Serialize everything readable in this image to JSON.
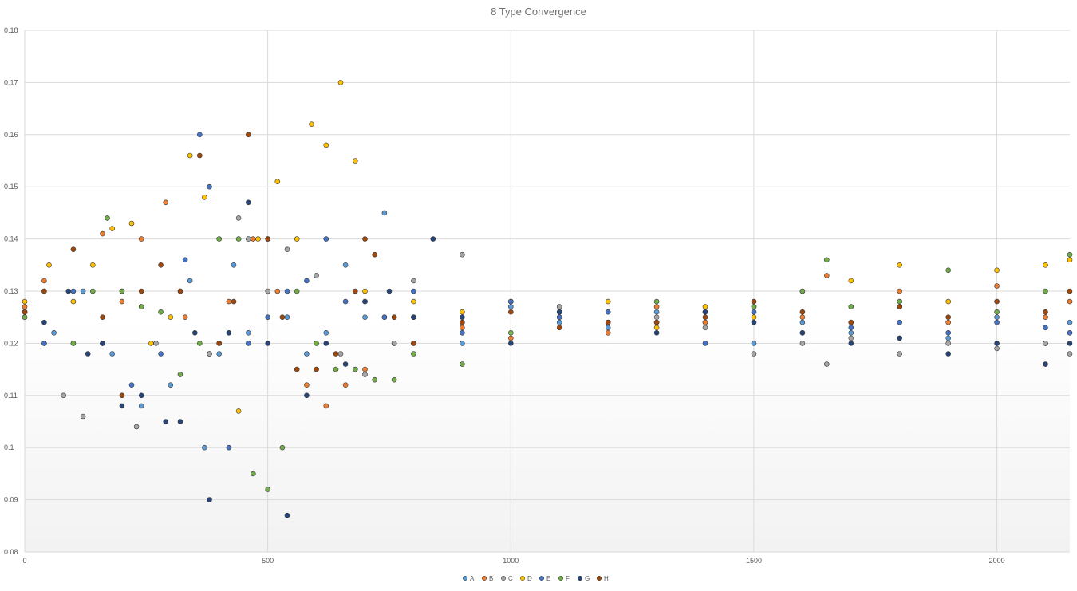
{
  "chart_data": {
    "type": "scatter",
    "title": "8 Type Convergence",
    "xlabel": "",
    "ylabel": "",
    "xlim": [
      0,
      2150
    ],
    "ylim": [
      0.08,
      0.18
    ],
    "x_ticks": [
      "0",
      "500",
      "1000",
      "1500",
      "2000"
    ],
    "y_ticks": [
      "0.08",
      "0.09",
      "0.1",
      "0.11",
      "0.12",
      "0.13",
      "0.14",
      "0.15",
      "0.16",
      "0.17",
      "0.18"
    ],
    "grid": true,
    "legend_position": "bottom",
    "series": [
      {
        "name": "A",
        "color": "#5b9bd5",
        "x": [
          0,
          60,
          120,
          180,
          240,
          300,
          340,
          370,
          400,
          430,
          460,
          500,
          540,
          580,
          620,
          660,
          700,
          740,
          760,
          800,
          900,
          1000,
          1100,
          1200,
          1300,
          1400,
          1500,
          1600,
          1700,
          1800,
          1900,
          2000,
          2100,
          2150
        ],
        "y": [
          0.126,
          0.122,
          0.13,
          0.118,
          0.108,
          0.112,
          0.132,
          0.1,
          0.118,
          0.135,
          0.122,
          0.14,
          0.125,
          0.118,
          0.122,
          0.135,
          0.125,
          0.145,
          0.12,
          0.125,
          0.12,
          0.127,
          0.124,
          0.123,
          0.126,
          0.124,
          0.12,
          0.124,
          0.122,
          0.127,
          0.121,
          0.125,
          0.12,
          0.124
        ]
      },
      {
        "name": "B",
        "color": "#ed7d31",
        "x": [
          0,
          40,
          100,
          160,
          200,
          240,
          290,
          330,
          380,
          420,
          470,
          520,
          580,
          620,
          660,
          700,
          760,
          800,
          900,
          1000,
          1100,
          1200,
          1300,
          1400,
          1500,
          1600,
          1650,
          1700,
          1800,
          1900,
          2000,
          2100,
          2150
        ],
        "y": [
          0.127,
          0.132,
          0.12,
          0.141,
          0.128,
          0.14,
          0.147,
          0.125,
          0.118,
          0.128,
          0.14,
          0.13,
          0.112,
          0.108,
          0.112,
          0.115,
          0.125,
          0.12,
          0.123,
          0.121,
          0.126,
          0.122,
          0.127,
          0.124,
          0.127,
          0.125,
          0.133,
          0.124,
          0.13,
          0.124,
          0.131,
          0.125,
          0.128
        ]
      },
      {
        "name": "C",
        "color": "#a5a5a5",
        "x": [
          0,
          40,
          80,
          120,
          160,
          200,
          230,
          270,
          320,
          380,
          440,
          460,
          500,
          540,
          600,
          650,
          700,
          760,
          800,
          900,
          1000,
          1100,
          1200,
          1300,
          1400,
          1500,
          1600,
          1650,
          1700,
          1800,
          1900,
          2000,
          2100,
          2150
        ],
        "y": [
          0.126,
          0.12,
          0.11,
          0.106,
          0.12,
          0.13,
          0.104,
          0.12,
          0.13,
          0.118,
          0.144,
          0.14,
          0.13,
          0.138,
          0.133,
          0.118,
          0.114,
          0.12,
          0.132,
          0.137,
          0.128,
          0.127,
          0.124,
          0.125,
          0.123,
          0.118,
          0.12,
          0.116,
          0.121,
          0.118,
          0.12,
          0.119,
          0.12,
          0.118
        ]
      },
      {
        "name": "D",
        "color": "#ffc000",
        "x": [
          0,
          50,
          100,
          140,
          180,
          220,
          260,
          300,
          340,
          370,
          400,
          440,
          480,
          520,
          560,
          590,
          620,
          650,
          680,
          700,
          740,
          800,
          900,
          1000,
          1100,
          1200,
          1300,
          1400,
          1500,
          1600,
          1700,
          1800,
          1900,
          2000,
          2100,
          2150
        ],
        "y": [
          0.128,
          0.135,
          0.128,
          0.135,
          0.142,
          0.143,
          0.12,
          0.125,
          0.156,
          0.148,
          0.12,
          0.107,
          0.14,
          0.151,
          0.14,
          0.162,
          0.158,
          0.17,
          0.155,
          0.13,
          0.125,
          0.128,
          0.126,
          0.128,
          0.125,
          0.128,
          0.123,
          0.127,
          0.125,
          0.13,
          0.132,
          0.135,
          0.128,
          0.134,
          0.135,
          0.136
        ]
      },
      {
        "name": "E",
        "color": "#4472c4",
        "x": [
          0,
          40,
          100,
          160,
          220,
          280,
          330,
          360,
          380,
          400,
          420,
          460,
          500,
          540,
          580,
          620,
          660,
          700,
          740,
          800,
          900,
          1000,
          1100,
          1200,
          1300,
          1400,
          1500,
          1600,
          1700,
          1800,
          1900,
          2000,
          2100,
          2150
        ],
        "y": [
          0.125,
          0.12,
          0.13,
          0.12,
          0.112,
          0.118,
          0.136,
          0.16,
          0.15,
          0.12,
          0.1,
          0.12,
          0.125,
          0.13,
          0.132,
          0.14,
          0.128,
          0.128,
          0.125,
          0.13,
          0.122,
          0.128,
          0.125,
          0.126,
          0.124,
          0.12,
          0.126,
          0.122,
          0.123,
          0.124,
          0.122,
          0.124,
          0.123,
          0.122
        ]
      },
      {
        "name": "F",
        "color": "#70ad47",
        "x": [
          0,
          40,
          100,
          140,
          170,
          200,
          240,
          280,
          320,
          360,
          400,
          440,
          470,
          500,
          530,
          560,
          600,
          640,
          680,
          720,
          760,
          800,
          900,
          1000,
          1100,
          1200,
          1300,
          1400,
          1500,
          1600,
          1650,
          1700,
          1800,
          1900,
          2000,
          2100,
          2150
        ],
        "y": [
          0.125,
          0.13,
          0.12,
          0.13,
          0.144,
          0.13,
          0.127,
          0.126,
          0.114,
          0.12,
          0.14,
          0.14,
          0.095,
          0.092,
          0.1,
          0.13,
          0.12,
          0.115,
          0.115,
          0.113,
          0.113,
          0.118,
          0.116,
          0.122,
          0.126,
          0.124,
          0.128,
          0.126,
          0.127,
          0.13,
          0.136,
          0.127,
          0.128,
          0.134,
          0.126,
          0.13,
          0.137
        ]
      },
      {
        "name": "G",
        "color": "#264478",
        "x": [
          0,
          40,
          90,
          130,
          160,
          200,
          240,
          290,
          320,
          350,
          380,
          420,
          460,
          500,
          540,
          580,
          620,
          660,
          700,
          750,
          800,
          840,
          900,
          1000,
          1100,
          1200,
          1300,
          1400,
          1500,
          1600,
          1700,
          1800,
          1900,
          2000,
          2100,
          2150
        ],
        "y": [
          0.126,
          0.124,
          0.13,
          0.118,
          0.12,
          0.108,
          0.11,
          0.105,
          0.105,
          0.122,
          0.09,
          0.122,
          0.147,
          0.12,
          0.087,
          0.11,
          0.12,
          0.116,
          0.128,
          0.13,
          0.125,
          0.14,
          0.125,
          0.12,
          0.126,
          0.124,
          0.122,
          0.126,
          0.124,
          0.122,
          0.12,
          0.121,
          0.118,
          0.12,
          0.116,
          0.12
        ]
      },
      {
        "name": "H",
        "color": "#9e480e",
        "x": [
          0,
          40,
          100,
          160,
          200,
          240,
          280,
          320,
          360,
          400,
          430,
          460,
          500,
          530,
          560,
          600,
          640,
          680,
          700,
          720,
          760,
          800,
          900,
          1000,
          1100,
          1200,
          1300,
          1400,
          1500,
          1600,
          1700,
          1800,
          1900,
          2000,
          2100,
          2150
        ],
        "y": [
          0.126,
          0.13,
          0.138,
          0.125,
          0.11,
          0.13,
          0.135,
          0.13,
          0.156,
          0.12,
          0.128,
          0.16,
          0.14,
          0.125,
          0.115,
          0.115,
          0.118,
          0.13,
          0.14,
          0.137,
          0.125,
          0.12,
          0.124,
          0.126,
          0.123,
          0.124,
          0.124,
          0.125,
          0.128,
          0.126,
          0.124,
          0.127,
          0.125,
          0.128,
          0.126,
          0.13
        ]
      }
    ]
  }
}
